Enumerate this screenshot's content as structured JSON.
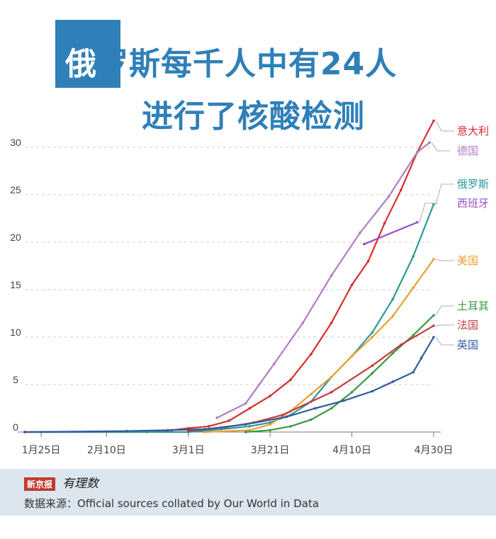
{
  "title": {
    "first_char": "俄",
    "line1_rest": "罗斯每千人中有24人",
    "line2": "进行了核酸检测"
  },
  "footer": {
    "logo_box": "新京报",
    "logo_script": "有理数",
    "source": "数据来源：Official sources collated by Our World in Data"
  },
  "chart_data": {
    "type": "line",
    "x_tick_labels": [
      "1月25日",
      "2月10日",
      "3月1日",
      "3月21日",
      "4月10日",
      "4月30日"
    ],
    "x_ticks": [
      "2020-01-25",
      "2020-02-10",
      "2020-03-01",
      "2020-03-21",
      "2020-04-10",
      "2020-04-30"
    ],
    "xlim": [
      "2020-01-21",
      "2020-04-30"
    ],
    "y_tick_labels": [
      "0",
      "5",
      "10",
      "15",
      "20",
      "25",
      "30"
    ],
    "y_ticks": [
      0,
      5,
      10,
      15,
      20,
      25,
      30
    ],
    "ylim": [
      0,
      30
    ],
    "grid": "horizontal dashed",
    "series": [
      {
        "name": "意大利",
        "color": "#d62f2f",
        "points": [
          [
            "2020-01-21",
            0
          ],
          [
            "2020-02-20",
            0
          ],
          [
            "2020-02-26",
            0.2
          ],
          [
            "2020-03-01",
            0.4
          ],
          [
            "2020-03-06",
            0.6
          ],
          [
            "2020-03-11",
            1.2
          ],
          [
            "2020-03-16",
            2.5
          ],
          [
            "2020-03-21",
            3.8
          ],
          [
            "2020-03-26",
            5.5
          ],
          [
            "2020-03-31",
            8.2
          ],
          [
            "2020-04-05",
            11.5
          ],
          [
            "2020-04-10",
            15.5
          ],
          [
            "2020-04-14",
            18.0
          ],
          [
            "2020-04-18",
            22.0
          ],
          [
            "2020-04-22",
            25.5
          ],
          [
            "2020-04-26",
            29.5
          ],
          [
            "2020-04-30",
            32.8
          ]
        ]
      },
      {
        "name": "德国",
        "color": "#b07cc6",
        "points": [
          [
            "2020-03-08",
            1.5
          ],
          [
            "2020-03-15",
            3.0
          ],
          [
            "2020-03-22",
            7.2
          ],
          [
            "2020-03-29",
            11.5
          ],
          [
            "2020-04-05",
            16.5
          ],
          [
            "2020-04-12",
            21.0
          ],
          [
            "2020-04-19",
            24.8
          ],
          [
            "2020-04-26",
            29.5
          ],
          [
            "2020-04-29",
            30.5
          ]
        ]
      },
      {
        "name": "俄罗斯",
        "color": "#2a9a9a",
        "points": [
          [
            "2020-01-21",
            0
          ],
          [
            "2020-03-01",
            0
          ],
          [
            "2020-03-09",
            0.3
          ],
          [
            "2020-03-16",
            0.6
          ],
          [
            "2020-03-21",
            1.0
          ],
          [
            "2020-03-26",
            1.8
          ],
          [
            "2020-03-31",
            3.2
          ],
          [
            "2020-04-05",
            5.8
          ],
          [
            "2020-04-10",
            8.0
          ],
          [
            "2020-04-15",
            10.5
          ],
          [
            "2020-04-20",
            14.0
          ],
          [
            "2020-04-25",
            18.5
          ],
          [
            "2020-04-30",
            24.0
          ]
        ]
      },
      {
        "name": "西班牙",
        "color": "#9c4fc2",
        "points": [
          [
            "2020-04-13",
            19.8
          ],
          [
            "2020-04-26",
            22.1
          ]
        ]
      },
      {
        "name": "美国",
        "color": "#e8a033",
        "points": [
          [
            "2020-03-05",
            0
          ],
          [
            "2020-03-11",
            0.1
          ],
          [
            "2020-03-16",
            0.2
          ],
          [
            "2020-03-21",
            0.8
          ],
          [
            "2020-03-26",
            2.2
          ],
          [
            "2020-03-31",
            4.0
          ],
          [
            "2020-04-05",
            5.8
          ],
          [
            "2020-04-10",
            8.0
          ],
          [
            "2020-04-15",
            10.0
          ],
          [
            "2020-04-20",
            12.2
          ],
          [
            "2020-04-25",
            15.2
          ],
          [
            "2020-04-30",
            18.2
          ]
        ]
      },
      {
        "name": "土耳其",
        "color": "#3a9a3e",
        "points": [
          [
            "2020-03-15",
            0
          ],
          [
            "2020-03-21",
            0.2
          ],
          [
            "2020-03-26",
            0.6
          ],
          [
            "2020-03-31",
            1.3
          ],
          [
            "2020-04-05",
            2.5
          ],
          [
            "2020-04-10",
            4.2
          ],
          [
            "2020-04-15",
            6.2
          ],
          [
            "2020-04-20",
            8.3
          ],
          [
            "2020-04-25",
            10.2
          ],
          [
            "2020-04-30",
            12.3
          ]
        ]
      },
      {
        "name": "法国",
        "color": "#c43c3c",
        "points": [
          [
            "2020-03-01",
            0.1
          ],
          [
            "2020-03-10",
            0.5
          ],
          [
            "2020-03-17",
            1.0
          ],
          [
            "2020-03-24",
            1.8
          ],
          [
            "2020-04-05",
            4.2
          ],
          [
            "2020-04-15",
            7.0
          ],
          [
            "2020-04-22",
            9.2
          ],
          [
            "2020-04-30",
            11.2
          ]
        ]
      },
      {
        "name": "英国",
        "color": "#2f5c9e",
        "points": [
          [
            "2020-01-21",
            0
          ],
          [
            "2020-02-15",
            0.1
          ],
          [
            "2020-02-25",
            0.2
          ],
          [
            "2020-03-05",
            0.3
          ],
          [
            "2020-03-15",
            0.8
          ],
          [
            "2020-03-25",
            1.6
          ],
          [
            "2020-04-01",
            2.5
          ],
          [
            "2020-04-08",
            3.3
          ],
          [
            "2020-04-15",
            4.3
          ],
          [
            "2020-04-20",
            5.3
          ],
          [
            "2020-04-25",
            6.3
          ],
          [
            "2020-04-27",
            7.8
          ],
          [
            "2020-04-30",
            10.0
          ]
        ]
      }
    ]
  }
}
